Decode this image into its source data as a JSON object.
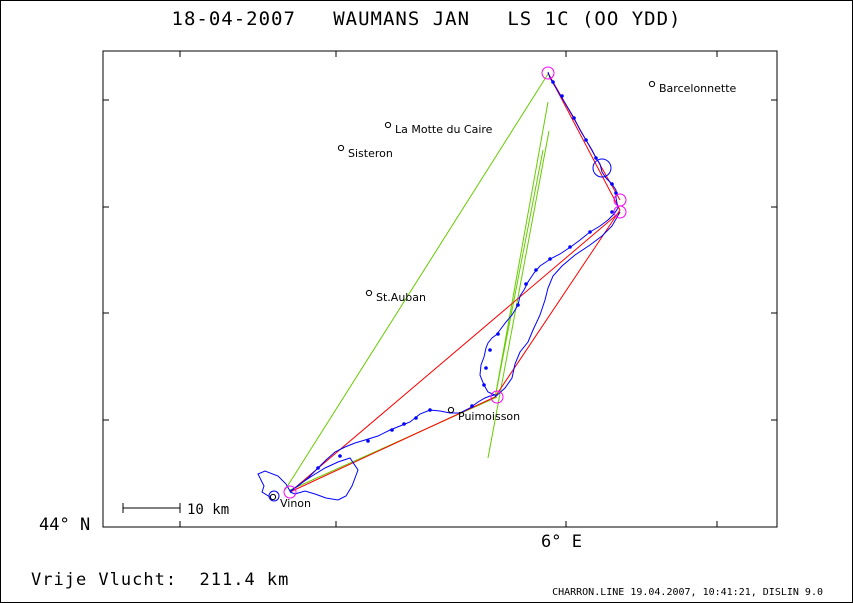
{
  "title": "18-04-2007   WAUMANS JAN   LS 1C (OO YDD)",
  "axes": {
    "lat_label": "44° N",
    "lon_label": "6° E"
  },
  "scale_bar": {
    "label": "10 km"
  },
  "towns": [
    {
      "name": "Barcelonnette"
    },
    {
      "name": "La Motte du Caire"
    },
    {
      "name": "Sisteron"
    },
    {
      "name": "St.Auban"
    },
    {
      "name": "Puimoisson"
    },
    {
      "name": "Vinon"
    }
  ],
  "flight": {
    "distance_text": "Vrije Vlucht:  211.4 km"
  },
  "footer": "CHARRON.LINE 19.04.2007, 10:41:21, DISLIN 9.0",
  "colors": {
    "track": "#0000ff",
    "task_legs": "#ff0000",
    "sector_lines": "#66cc00",
    "turnpoint_circles": "#ff00ff",
    "frame": "#000000"
  }
}
